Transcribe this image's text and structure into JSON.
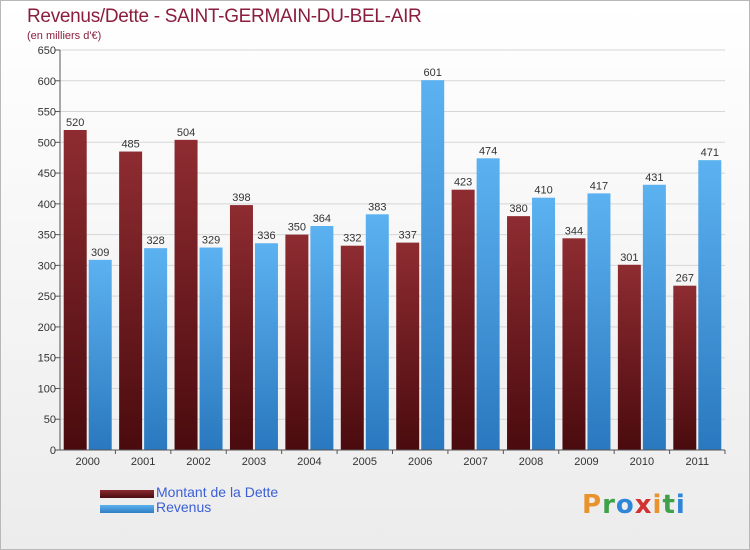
{
  "chart_data": {
    "type": "bar",
    "title": "Revenus/Dette - SAINT-GERMAIN-DU-BEL-AIR",
    "subtitle": "(en milliers d'€)",
    "categories": [
      "2000",
      "2001",
      "2002",
      "2003",
      "2004",
      "2005",
      "2006",
      "2007",
      "2008",
      "2009",
      "2010",
      "2011"
    ],
    "series": [
      {
        "name": "Montant de la Dette",
        "color": "#7a1f24",
        "values": [
          520,
          485,
          504,
          398,
          350,
          332,
          337,
          423,
          380,
          344,
          301,
          267
        ]
      },
      {
        "name": "Revenus",
        "color": "#4da3e3",
        "values": [
          309,
          328,
          329,
          336,
          364,
          383,
          601,
          474,
          410,
          417,
          431,
          471
        ]
      }
    ],
    "ylim": [
      0,
      650
    ],
    "yticks": [
      0,
      50,
      100,
      150,
      200,
      250,
      300,
      350,
      400,
      450,
      500,
      550,
      600,
      650
    ],
    "grid": true,
    "legend_position": "bottom-left",
    "data_labels": true
  },
  "logo": {
    "letters": [
      "P",
      "r",
      "o",
      "x",
      "i",
      "t",
      "i"
    ],
    "colors": [
      "#e8932c",
      "#3fa24b",
      "#2f86d8",
      "#d13232",
      "#e8932c",
      "#3fa24b",
      "#2f86d8"
    ]
  }
}
